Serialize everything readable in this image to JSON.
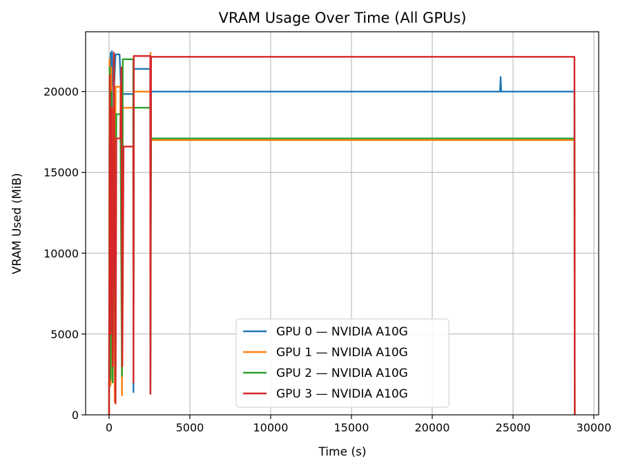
{
  "chart_data": {
    "type": "line",
    "title": "VRAM Usage Over Time (All GPUs)",
    "xlabel": "Time (s)",
    "ylabel": "VRAM Used (MiB)",
    "xlim": [
      -1450,
      30300
    ],
    "ylim": [
      0,
      23700
    ],
    "xticks": [
      0,
      5000,
      10000,
      15000,
      20000,
      25000,
      30000
    ],
    "yticks": [
      0,
      5000,
      10000,
      15000,
      20000
    ],
    "grid": true,
    "legend_position": "lower-center",
    "series": [
      {
        "name": "GPU 0 — NVIDIA A10G",
        "color": "#1f77b4",
        "points": [
          [
            0,
            0
          ],
          [
            20,
            15800
          ],
          [
            60,
            21000
          ],
          [
            100,
            22400
          ],
          [
            140,
            3500
          ],
          [
            180,
            22500
          ],
          [
            240,
            21000
          ],
          [
            300,
            20100
          ],
          [
            400,
            22300
          ],
          [
            650,
            22300
          ],
          [
            750,
            19850
          ],
          [
            1100,
            19850
          ],
          [
            1500,
            19850
          ],
          [
            1510,
            1400
          ],
          [
            1530,
            21400
          ],
          [
            2550,
            21400
          ],
          [
            2560,
            1300
          ],
          [
            2600,
            20000
          ],
          [
            24200,
            20000
          ],
          [
            24230,
            20900
          ],
          [
            24270,
            20000
          ],
          [
            28800,
            20000
          ],
          [
            28820,
            0
          ]
        ]
      },
      {
        "name": "GPU 1 — NVIDIA A10G",
        "color": "#ff7f0e",
        "points": [
          [
            0,
            0
          ],
          [
            30,
            22000
          ],
          [
            80,
            1800
          ],
          [
            140,
            21500
          ],
          [
            200,
            2000
          ],
          [
            260,
            19000
          ],
          [
            350,
            800
          ],
          [
            400,
            20300
          ],
          [
            700,
            20300
          ],
          [
            800,
            1200
          ],
          [
            850,
            19000
          ],
          [
            1500,
            19000
          ],
          [
            1510,
            2900
          ],
          [
            1530,
            20000
          ],
          [
            2550,
            20000
          ],
          [
            2560,
            22400
          ],
          [
            2600,
            17000
          ],
          [
            28800,
            17000
          ],
          [
            28820,
            0
          ]
        ]
      },
      {
        "name": "GPU 2 — NVIDIA A10G",
        "color": "#2ca02c",
        "points": [
          [
            0,
            0
          ],
          [
            40,
            21500
          ],
          [
            90,
            2200
          ],
          [
            150,
            20000
          ],
          [
            220,
            2000
          ],
          [
            300,
            17000
          ],
          [
            400,
            800
          ],
          [
            450,
            18600
          ],
          [
            700,
            18600
          ],
          [
            800,
            2400
          ],
          [
            850,
            22000
          ],
          [
            1500,
            22000
          ],
          [
            1510,
            4500
          ],
          [
            1530,
            19000
          ],
          [
            2550,
            19000
          ],
          [
            2560,
            1500
          ],
          [
            2600,
            17100
          ],
          [
            28800,
            17100
          ],
          [
            28820,
            0
          ]
        ]
      },
      {
        "name": "GPU 3 — NVIDIA A10G",
        "color": "#d62728",
        "points": [
          [
            0,
            0
          ],
          [
            50,
            21000
          ],
          [
            100,
            5000
          ],
          [
            160,
            19000
          ],
          [
            230,
            3000
          ],
          [
            300,
            22400
          ],
          [
            400,
            700
          ],
          [
            450,
            17100
          ],
          [
            700,
            17100
          ],
          [
            760,
            21500
          ],
          [
            820,
            3000
          ],
          [
            900,
            16600
          ],
          [
            1500,
            16600
          ],
          [
            1510,
            2000
          ],
          [
            1530,
            22200
          ],
          [
            2550,
            22200
          ],
          [
            2560,
            1300
          ],
          [
            2600,
            22150
          ],
          [
            28800,
            22150
          ],
          [
            28820,
            0
          ]
        ]
      }
    ]
  }
}
